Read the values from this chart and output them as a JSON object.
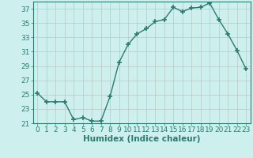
{
  "x": [
    0,
    1,
    2,
    3,
    4,
    5,
    6,
    7,
    8,
    9,
    10,
    11,
    12,
    13,
    14,
    15,
    16,
    17,
    18,
    19,
    20,
    21,
    22,
    23
  ],
  "y": [
    25.2,
    24.0,
    24.0,
    24.0,
    21.5,
    21.8,
    21.3,
    21.3,
    24.7,
    29.5,
    32.0,
    33.5,
    34.2,
    35.2,
    35.5,
    37.2,
    36.6,
    37.1,
    37.2,
    37.8,
    35.5,
    33.5,
    31.2,
    28.6
  ],
  "line_color": "#2d7a6e",
  "marker": "+",
  "marker_size": 4,
  "bg_color": "#cdf0ee",
  "grid_major_color": "#b8c8c8",
  "grid_minor_color": "#d8e8e8",
  "xlabel": "Humidex (Indice chaleur)",
  "ylim": [
    21,
    38
  ],
  "xlim": [
    -0.5,
    23.5
  ],
  "yticks": [
    21,
    23,
    25,
    27,
    29,
    31,
    33,
    35,
    37
  ],
  "xticks": [
    0,
    1,
    2,
    3,
    4,
    5,
    6,
    7,
    8,
    9,
    10,
    11,
    12,
    13,
    14,
    15,
    16,
    17,
    18,
    19,
    20,
    21,
    22,
    23
  ],
  "axis_color": "#2d7a6e",
  "label_color": "#2d7a6e",
  "xlabel_fontsize": 7.5,
  "tick_fontsize": 6.5,
  "linewidth": 1.0,
  "marker_linewidth": 1.2
}
